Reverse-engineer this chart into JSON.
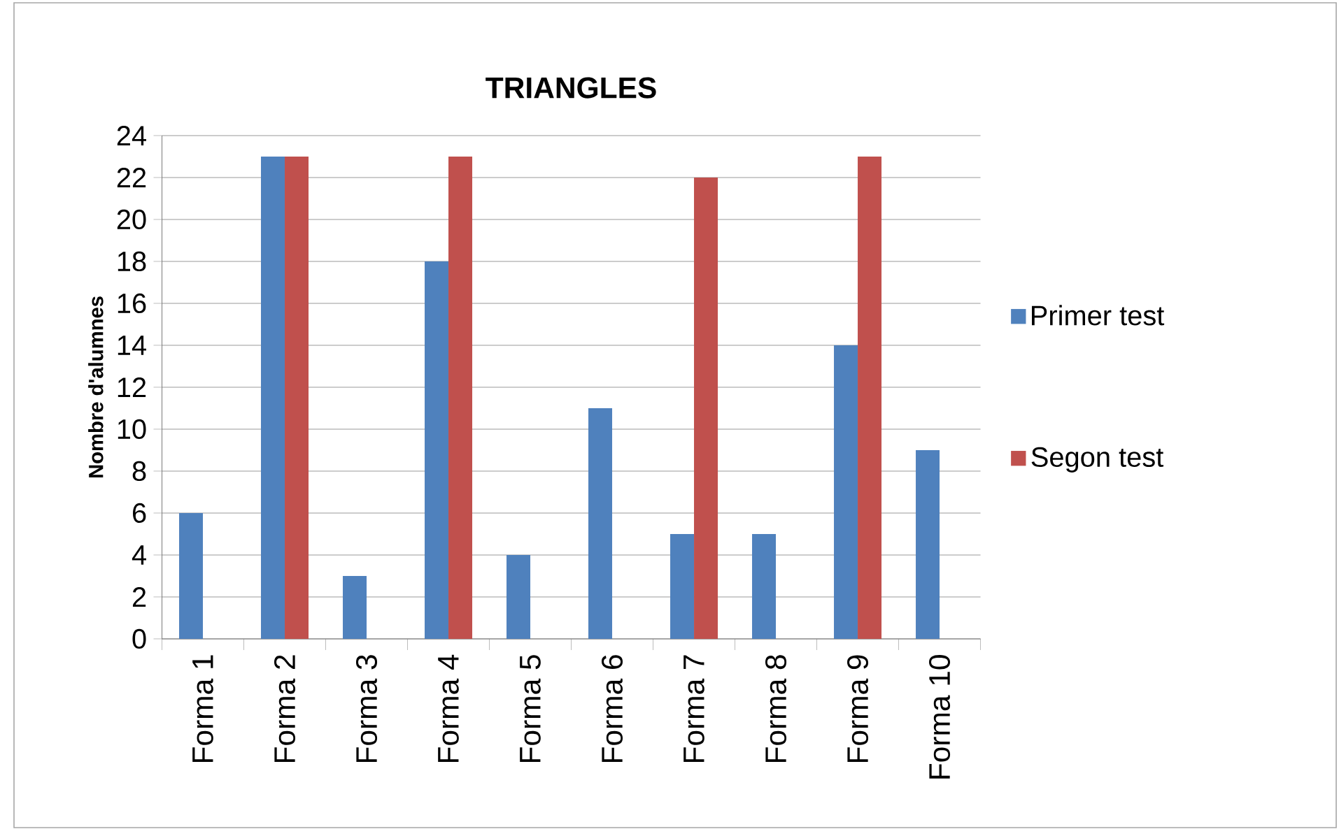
{
  "chart_data": {
    "type": "bar",
    "title": "TRIANGLES",
    "ylabel": "Nombre d'alumnes",
    "categories": [
      "Forma 1",
      "Forma 2",
      "Forma 3",
      "Forma 4",
      "Forma 5",
      "Forma 6",
      "Forma 7",
      "Forma 8",
      "Forma 9",
      "Forma 10"
    ],
    "series": [
      {
        "name": "Primer test",
        "color": "#4f81bd",
        "values": [
          6,
          23,
          3,
          18,
          4,
          11,
          5,
          5,
          14,
          9
        ]
      },
      {
        "name": "Segon test",
        "color": "#c0504d",
        "values": [
          0,
          23,
          0,
          23,
          0,
          0,
          22,
          0,
          23,
          0
        ]
      }
    ],
    "ylim": [
      0,
      24
    ],
    "yticks": [
      0,
      2,
      4,
      6,
      8,
      10,
      12,
      14,
      16,
      18,
      20,
      22,
      24
    ],
    "grid": "y",
    "legend": "right"
  }
}
